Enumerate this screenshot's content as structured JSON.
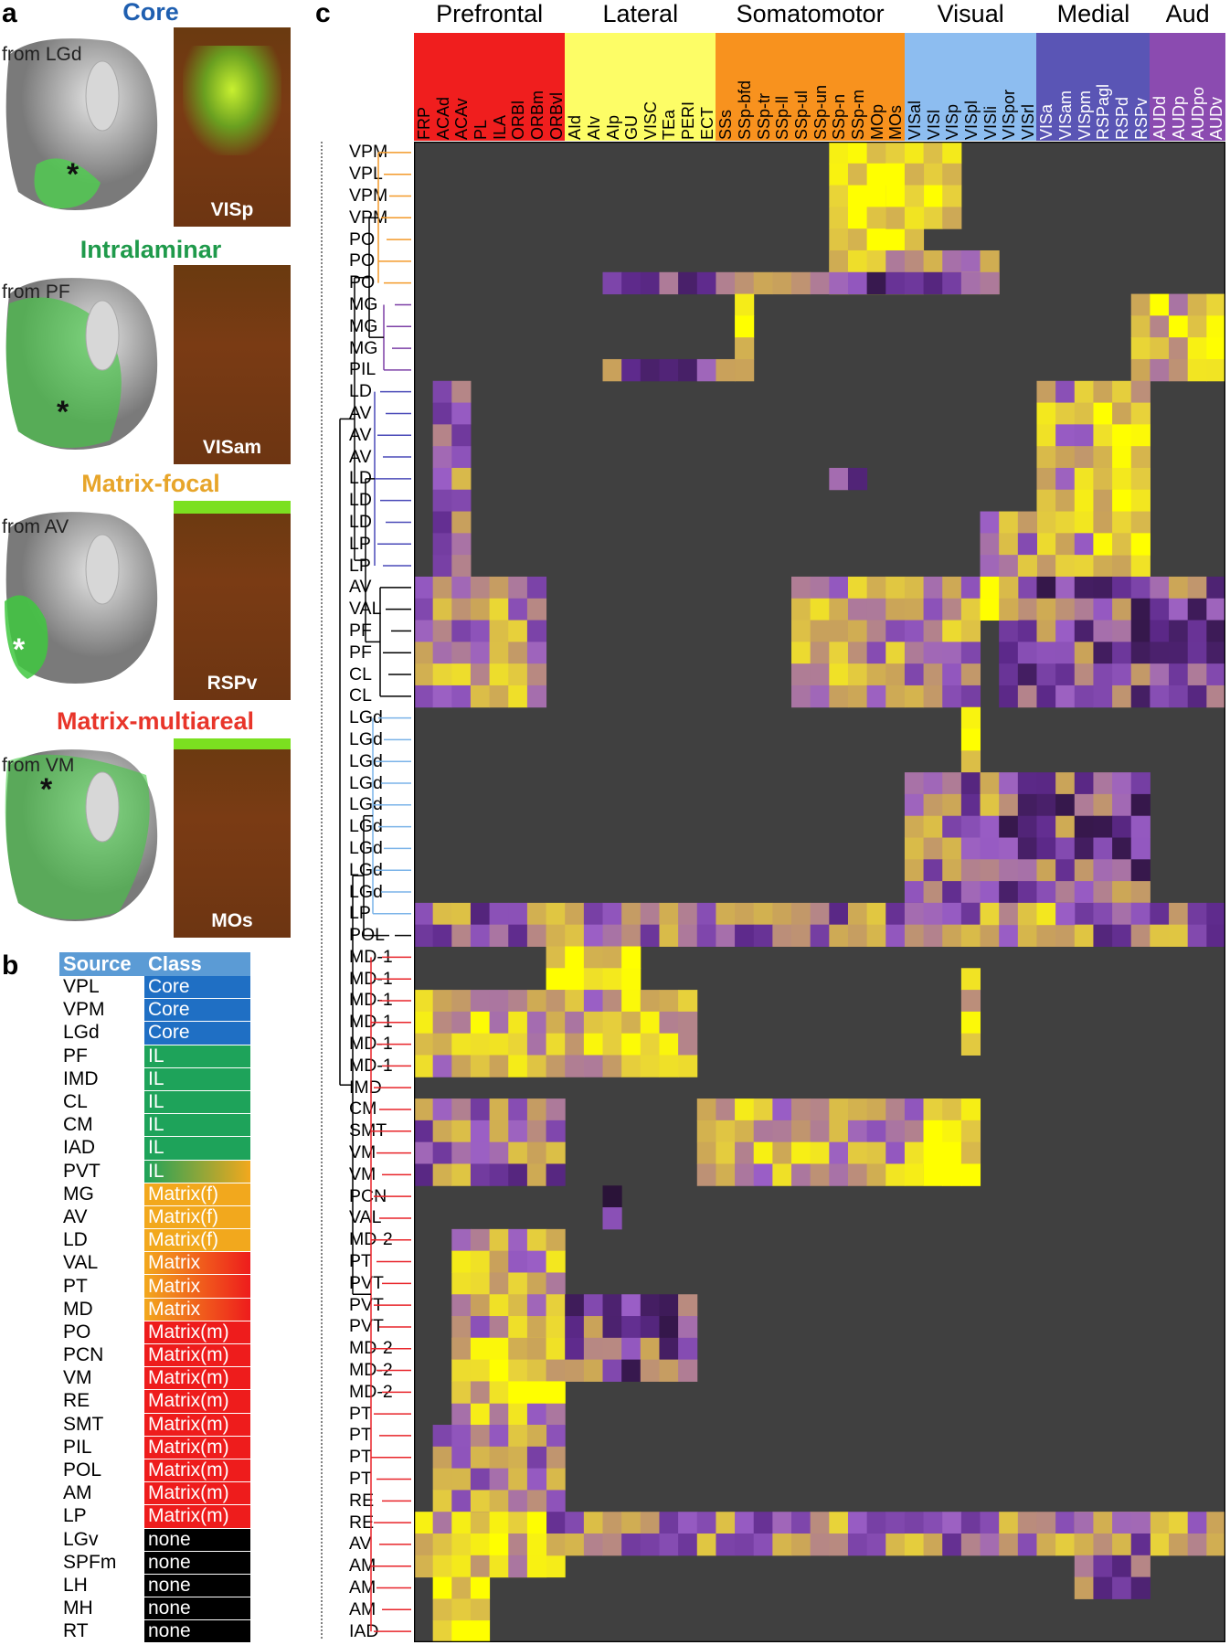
{
  "panel_a": {
    "letter": "a",
    "items": [
      {
        "title": "Core",
        "title_color": "#1f5fb0",
        "from": "from LGd",
        "section": "VISp"
      },
      {
        "title": "Intralaminar",
        "title_color": "#1f9a4b",
        "from": "from PF",
        "section": "VISam"
      },
      {
        "title": "Matrix-focal",
        "title_color": "#e7a52a",
        "from": "from AV",
        "section": "RSPv"
      },
      {
        "title": "Matrix-multiareal",
        "title_color": "#e8352a",
        "from": "from VM",
        "section": "MOs"
      }
    ]
  },
  "panel_b": {
    "letter": "b",
    "header_source": "Source",
    "header_class": "Class",
    "rows": [
      {
        "source": "VPL",
        "cls": "Core",
        "color": "#1f6fc4"
      },
      {
        "source": "VPM",
        "cls": "Core",
        "color": "#1f6fc4"
      },
      {
        "source": "LGd",
        "cls": "Core",
        "color": "#1f6fc4"
      },
      {
        "source": "PF",
        "cls": "IL",
        "color": "#1ea35a"
      },
      {
        "source": "IMD",
        "cls": "IL",
        "color": "#1ea35a"
      },
      {
        "source": "CL",
        "cls": "IL",
        "color": "#1ea35a"
      },
      {
        "source": "CM",
        "cls": "IL",
        "color": "#1ea35a"
      },
      {
        "source": "IAD",
        "cls": "IL",
        "color": "#1ea35a"
      },
      {
        "source": "PVT",
        "cls": "IL",
        "color": "gradient-green-orange"
      },
      {
        "source": "MG",
        "cls": "Matrix(f)",
        "color": "#f2a81d"
      },
      {
        "source": "AV",
        "cls": "Matrix(f)",
        "color": "#f2a81d"
      },
      {
        "source": "LD",
        "cls": "Matrix(f)",
        "color": "#f2a81d"
      },
      {
        "source": "VAL",
        "cls": "Matrix",
        "color": "gradient-orange-red"
      },
      {
        "source": "PT",
        "cls": "Matrix",
        "color": "gradient-orange-red"
      },
      {
        "source": "MD",
        "cls": "Matrix",
        "color": "gradient-orange-red"
      },
      {
        "source": "PO",
        "cls": "Matrix(m)",
        "color": "#ee1c1c"
      },
      {
        "source": "PCN",
        "cls": "Matrix(m)",
        "color": "#ee1c1c"
      },
      {
        "source": "VM",
        "cls": "Matrix(m)",
        "color": "#ee1c1c"
      },
      {
        "source": "RE",
        "cls": "Matrix(m)",
        "color": "#ee1c1c"
      },
      {
        "source": "SMT",
        "cls": "Matrix(m)",
        "color": "#ee1c1c"
      },
      {
        "source": "PIL",
        "cls": "Matrix(m)",
        "color": "#ee1c1c"
      },
      {
        "source": "POL",
        "cls": "Matrix(m)",
        "color": "#ee1c1c"
      },
      {
        "source": "AM",
        "cls": "Matrix(m)",
        "color": "#ee1c1c"
      },
      {
        "source": "LP",
        "cls": "Matrix(m)",
        "color": "#ee1c1c"
      },
      {
        "source": "LGv",
        "cls": "none",
        "color": "#000000"
      },
      {
        "source": "SPFm",
        "cls": "none",
        "color": "#000000"
      },
      {
        "source": "LH",
        "cls": "none",
        "color": "#000000"
      },
      {
        "source": "MH",
        "cls": "none",
        "color": "#000000"
      },
      {
        "source": "RT",
        "cls": "none",
        "color": "#000000"
      }
    ]
  },
  "panel_c": {
    "letter": "c",
    "regions": [
      {
        "name": "Prefrontal",
        "color": "#f01e1e",
        "cols": [
          "FRP",
          "ACAd",
          "ACAv",
          "PL",
          "ILA",
          "ORBl",
          "ORBm",
          "ORBvl"
        ]
      },
      {
        "name": "Lateral",
        "color": "#fdfd66",
        "cols": [
          "AId",
          "AIv",
          "AIp",
          "GU",
          "VISC",
          "TEa",
          "PERI",
          "ECT"
        ]
      },
      {
        "name": "Somatomotor",
        "color": "#f8921e",
        "cols": [
          "SSs",
          "SSp-bfd",
          "SSp-tr",
          "SSp-ll",
          "SSp-ul",
          "SSp-un",
          "SSp-n",
          "SSp-m",
          "MOp",
          "MOs"
        ]
      },
      {
        "name": "Visual",
        "color": "#8dbdf0",
        "cols": [
          "VISal",
          "VISl",
          "VISp",
          "VISpl",
          "VISli",
          "VISpor",
          "VISrl"
        ]
      },
      {
        "name": "Medial",
        "color": "#5a55b5",
        "cols": [
          "VISa",
          "VISam",
          "VISpm",
          "RSPagl",
          "RSPd",
          "RSPv"
        ]
      },
      {
        "name": "Aud",
        "color": "#8b4bb0",
        "cols": [
          "AUDd",
          "AUDp",
          "AUDpo",
          "AUDv"
        ]
      }
    ],
    "rows": [
      {
        "label": "VPM",
        "color": "#f39a2a"
      },
      {
        "label": "VPL",
        "color": "#f39a2a"
      },
      {
        "label": "VPM",
        "color": "#f39a2a"
      },
      {
        "label": "VPM",
        "color": "#f39a2a"
      },
      {
        "label": "PO",
        "color": "#f39a2a"
      },
      {
        "label": "PO",
        "color": "#f39a2a"
      },
      {
        "label": "PO",
        "color": "#f39a2a"
      },
      {
        "label": "MG",
        "color": "#7c3fa6"
      },
      {
        "label": "MG",
        "color": "#7c3fa6"
      },
      {
        "label": "MG",
        "color": "#7c3fa6"
      },
      {
        "label": "PIL",
        "color": "#7c3fa6"
      },
      {
        "label": "LD",
        "color": "#4a4ab8"
      },
      {
        "label": "AV",
        "color": "#4a4ab8"
      },
      {
        "label": "AV",
        "color": "#4a4ab8"
      },
      {
        "label": "AV",
        "color": "#4a4ab8"
      },
      {
        "label": "LD",
        "color": "#4a4ab8"
      },
      {
        "label": "LD",
        "color": "#4a4ab8"
      },
      {
        "label": "LD",
        "color": "#4a4ab8"
      },
      {
        "label": "LP",
        "color": "#4a4ab8"
      },
      {
        "label": "LP",
        "color": "#4a4ab8"
      },
      {
        "label": "AV",
        "color": "#000000"
      },
      {
        "label": "VAL",
        "color": "#000000"
      },
      {
        "label": "PF",
        "color": "#000000"
      },
      {
        "label": "PF",
        "color": "#000000"
      },
      {
        "label": "CL",
        "color": "#000000"
      },
      {
        "label": "CL",
        "color": "#000000"
      },
      {
        "label": "LGd",
        "color": "#7ab3e8"
      },
      {
        "label": "LGd",
        "color": "#7ab3e8"
      },
      {
        "label": "LGd",
        "color": "#7ab3e8"
      },
      {
        "label": "LGd",
        "color": "#7ab3e8"
      },
      {
        "label": "LGd",
        "color": "#7ab3e8"
      },
      {
        "label": "LGd",
        "color": "#7ab3e8"
      },
      {
        "label": "LGd",
        "color": "#7ab3e8"
      },
      {
        "label": "LGd",
        "color": "#7ab3e8"
      },
      {
        "label": "LGd",
        "color": "#7ab3e8"
      },
      {
        "label": "LP",
        "color": "#7ab3e8"
      },
      {
        "label": "POL",
        "color": "#000000"
      },
      {
        "label": "MD-1",
        "color": "#e8242a"
      },
      {
        "label": "MD-1",
        "color": "#e8242a"
      },
      {
        "label": "MD-1",
        "color": "#e8242a"
      },
      {
        "label": "MD-1",
        "color": "#e8242a"
      },
      {
        "label": "MD-1",
        "color": "#e8242a"
      },
      {
        "label": "MD-1",
        "color": "#e8242a"
      },
      {
        "label": "IMD",
        "color": "#e8242a"
      },
      {
        "label": "CM",
        "color": "#e8242a"
      },
      {
        "label": "SMT",
        "color": "#e8242a"
      },
      {
        "label": "VM",
        "color": "#e8242a"
      },
      {
        "label": "VM",
        "color": "#e8242a"
      },
      {
        "label": "PCN",
        "color": "#e8242a"
      },
      {
        "label": "VAL",
        "color": "#e8242a"
      },
      {
        "label": "MD-2",
        "color": "#e8242a"
      },
      {
        "label": "PT",
        "color": "#e8242a"
      },
      {
        "label": "PVT",
        "color": "#e8242a"
      },
      {
        "label": "PVT",
        "color": "#e8242a"
      },
      {
        "label": "PVT",
        "color": "#e8242a"
      },
      {
        "label": "MD-2",
        "color": "#e8242a"
      },
      {
        "label": "MD-2",
        "color": "#e8242a"
      },
      {
        "label": "MD-2",
        "color": "#e8242a"
      },
      {
        "label": "PT",
        "color": "#e8242a"
      },
      {
        "label": "PT",
        "color": "#e8242a"
      },
      {
        "label": "PT",
        "color": "#e8242a"
      },
      {
        "label": "PT",
        "color": "#e8242a"
      },
      {
        "label": "RE",
        "color": "#e8242a"
      },
      {
        "label": "RE",
        "color": "#e8242a"
      },
      {
        "label": "AV",
        "color": "#e8242a"
      },
      {
        "label": "AM",
        "color": "#e8242a"
      },
      {
        "label": "AM",
        "color": "#e8242a"
      },
      {
        "label": "AM",
        "color": "#e8242a"
      },
      {
        "label": "IAD",
        "color": "#e8242a"
      }
    ]
  },
  "chart_data": {
    "type": "heatmap",
    "colorscale": [
      "#404040",
      "#2a1238",
      "#5e2a8c",
      "#9a5ec6",
      "#c9a25a",
      "#e8d23a",
      "#ffff00"
    ],
    "value_range": [
      0,
      1
    ],
    "encoding": "bands are shown as an [row_start, row_end, col_start, col_end, value] block list",
    "n_rows": 70,
    "n_cols": 43,
    "blocks": [
      [
        0,
        7,
        22,
        27,
        0.95
      ],
      [
        0,
        4,
        27,
        29,
        0.9
      ],
      [
        1,
        4,
        25,
        27,
        0.85
      ],
      [
        5,
        7,
        22,
        31,
        0.75
      ],
      [
        6,
        7,
        10,
        31,
        0.45
      ],
      [
        7,
        11,
        38,
        43,
        0.8
      ],
      [
        7,
        10,
        17,
        18,
        0.85
      ],
      [
        10,
        11,
        10,
        18,
        0.5
      ],
      [
        11,
        20,
        1,
        3,
        0.6
      ],
      [
        11,
        20,
        33,
        39,
        0.7
      ],
      [
        12,
        19,
        36,
        39,
        0.9
      ],
      [
        17,
        20,
        30,
        33,
        0.6
      ],
      [
        15,
        16,
        22,
        24,
        0.5
      ],
      [
        20,
        26,
        0,
        7,
        0.65
      ],
      [
        20,
        26,
        20,
        30,
        0.65
      ],
      [
        20,
        26,
        31,
        43,
        0.45
      ],
      [
        20,
        22,
        30,
        32,
        0.9
      ],
      [
        26,
        36,
        29,
        30,
        0.98
      ],
      [
        29,
        36,
        26,
        31,
        0.55
      ],
      [
        29,
        36,
        31,
        39,
        0.45
      ],
      [
        35,
        37,
        0,
        43,
        0.55
      ],
      [
        35,
        36,
        30,
        35,
        0.7
      ],
      [
        37,
        42,
        7,
        12,
        0.9
      ],
      [
        39,
        43,
        0,
        15,
        0.75
      ],
      [
        38,
        42,
        29,
        30,
        0.8
      ],
      [
        44,
        48,
        0,
        8,
        0.55
      ],
      [
        44,
        48,
        15,
        30,
        0.7
      ],
      [
        44,
        48,
        27,
        30,
        0.95
      ],
      [
        48,
        50,
        10,
        11,
        0.4
      ],
      [
        50,
        66,
        2,
        8,
        0.7
      ],
      [
        55,
        58,
        2,
        8,
        0.85
      ],
      [
        53,
        57,
        8,
        15,
        0.45
      ],
      [
        59,
        63,
        1,
        7,
        0.6
      ],
      [
        63,
        65,
        0,
        43,
        0.6
      ],
      [
        63,
        66,
        0,
        7,
        0.8
      ],
      [
        66,
        70,
        1,
        4,
        0.95
      ],
      [
        63,
        67,
        35,
        39,
        0.5
      ]
    ]
  }
}
